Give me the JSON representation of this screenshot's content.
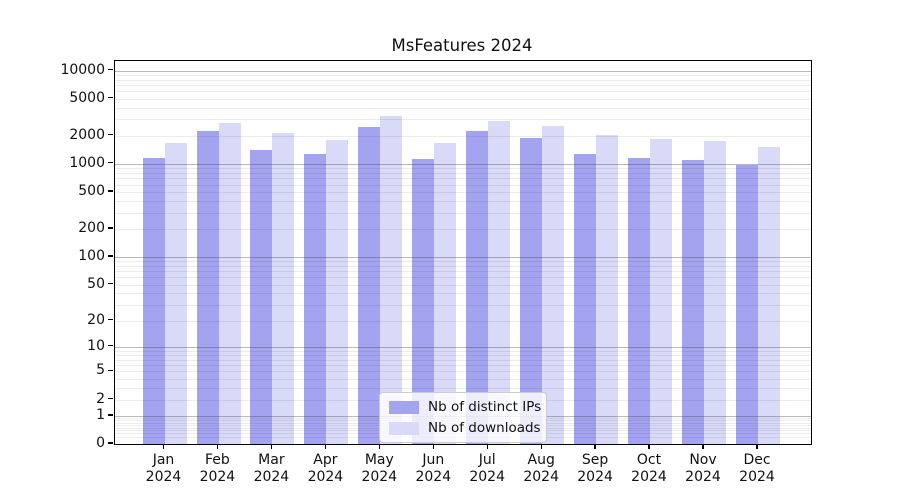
{
  "title": "MsFeatures 2024",
  "chart_data": {
    "type": "bar",
    "title": "MsFeatures 2024",
    "xlabel": "",
    "ylabel": "",
    "yscale": "log1p",
    "ylim": [
      0,
      12500
    ],
    "grid": "both-horizontal",
    "legend_position": "lower center",
    "year_label": "2024",
    "categories": [
      "Jan",
      "Feb",
      "Mar",
      "Apr",
      "May",
      "Jun",
      "Jul",
      "Aug",
      "Sep",
      "Oct",
      "Nov",
      "Dec"
    ],
    "series": [
      {
        "name": "Nb of distinct IPs",
        "color": "#a3a3f0",
        "values": [
          1150,
          2240,
          1415,
          1270,
          2510,
          1130,
          2240,
          1900,
          1270,
          1150,
          1105,
          975
        ]
      },
      {
        "name": "Nb of downloads",
        "color": "#d9d9f8",
        "values": [
          1680,
          2750,
          2130,
          1810,
          3240,
          1680,
          2915,
          2575,
          2050,
          1860,
          1740,
          1500
        ]
      }
    ],
    "y_ticks": [
      {
        "value": 10000,
        "label": "10000"
      },
      {
        "value": 5000,
        "label": "5000"
      },
      {
        "value": 2000,
        "label": "2000"
      },
      {
        "value": 1000,
        "label": "1000"
      },
      {
        "value": 500,
        "label": "500"
      },
      {
        "value": 200,
        "label": "200"
      },
      {
        "value": 100,
        "label": "100"
      },
      {
        "value": 50,
        "label": "50"
      },
      {
        "value": 20,
        "label": "20"
      },
      {
        "value": 10,
        "label": "10"
      },
      {
        "value": 5,
        "label": "5"
      },
      {
        "value": 2,
        "label": "2"
      },
      {
        "value": 1,
        "label": "1"
      },
      {
        "value": 0,
        "label": "0"
      }
    ]
  }
}
